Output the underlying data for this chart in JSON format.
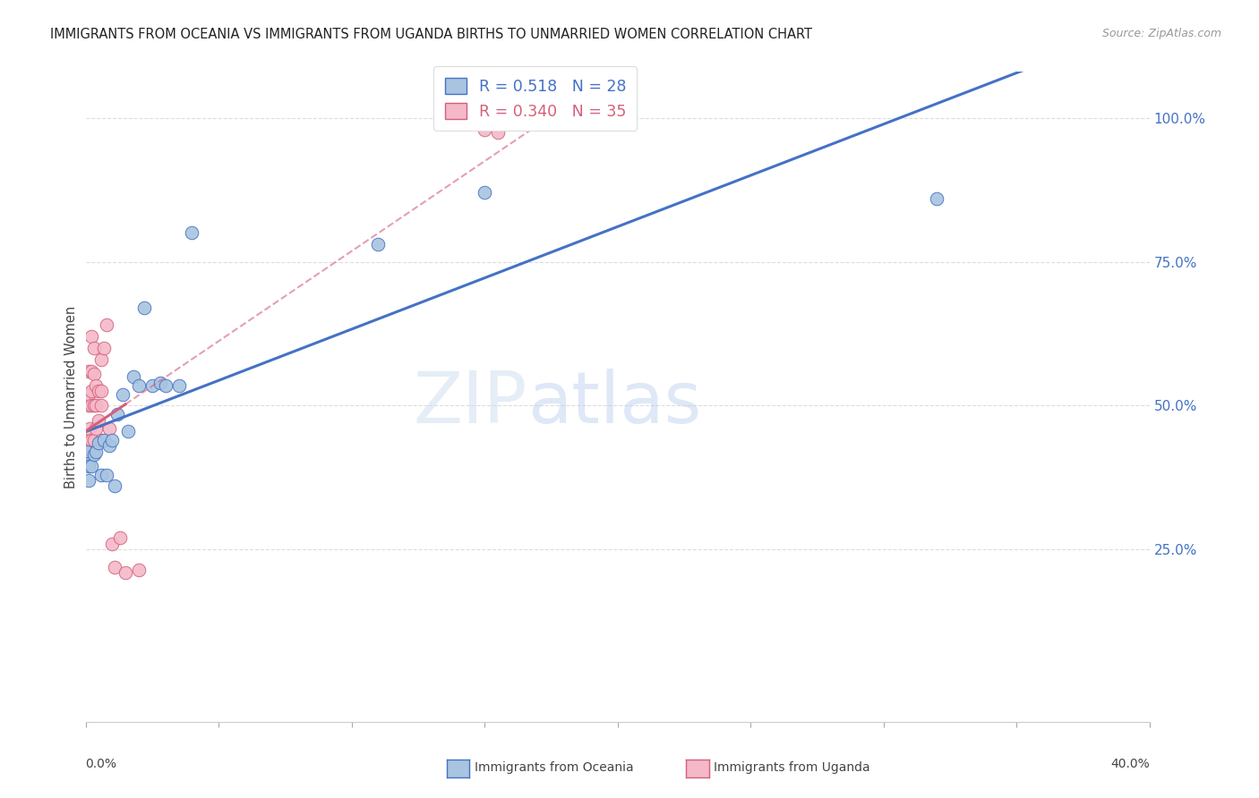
{
  "title": "IMMIGRANTS FROM OCEANIA VS IMMIGRANTS FROM UGANDA BIRTHS TO UNMARRIED WOMEN CORRELATION CHART",
  "source": "Source: ZipAtlas.com",
  "ylabel": "Births to Unmarried Women",
  "ylabel_right_ticks": [
    "100.0%",
    "75.0%",
    "50.0%",
    "25.0%"
  ],
  "ylabel_right_vals": [
    1.0,
    0.75,
    0.5,
    0.25
  ],
  "color_oceania": "#a8c4e0",
  "color_uganda": "#f4b8c8",
  "line_color_oceania": "#4472c4",
  "line_color_uganda": "#d4607a",
  "xlim": [
    0.0,
    0.4
  ],
  "ylim": [
    -0.05,
    1.08
  ],
  "oceania_x": [
    0.0005,
    0.001,
    0.001,
    0.001,
    0.002,
    0.003,
    0.004,
    0.005,
    0.006,
    0.007,
    0.008,
    0.009,
    0.01,
    0.011,
    0.012,
    0.014,
    0.016,
    0.018,
    0.02,
    0.022,
    0.025,
    0.028,
    0.03,
    0.035,
    0.04,
    0.11,
    0.32,
    0.15
  ],
  "oceania_y": [
    0.42,
    0.4,
    0.37,
    0.395,
    0.395,
    0.415,
    0.42,
    0.435,
    0.38,
    0.44,
    0.38,
    0.43,
    0.44,
    0.36,
    0.485,
    0.52,
    0.455,
    0.55,
    0.535,
    0.67,
    0.535,
    0.54,
    0.535,
    0.535,
    0.8,
    0.78,
    0.86,
    0.87
  ],
  "uganda_x": [
    0.0003,
    0.0005,
    0.001,
    0.001,
    0.001,
    0.001,
    0.0015,
    0.002,
    0.002,
    0.002,
    0.002,
    0.002,
    0.003,
    0.003,
    0.003,
    0.003,
    0.004,
    0.004,
    0.004,
    0.005,
    0.005,
    0.006,
    0.006,
    0.006,
    0.006,
    0.007,
    0.008,
    0.009,
    0.01,
    0.011,
    0.013,
    0.015,
    0.02,
    0.15,
    0.155
  ],
  "uganda_y": [
    0.415,
    0.42,
    0.44,
    0.5,
    0.52,
    0.56,
    0.46,
    0.44,
    0.5,
    0.525,
    0.56,
    0.62,
    0.44,
    0.5,
    0.555,
    0.6,
    0.46,
    0.5,
    0.535,
    0.475,
    0.525,
    0.44,
    0.5,
    0.525,
    0.58,
    0.6,
    0.64,
    0.46,
    0.26,
    0.22,
    0.27,
    0.21,
    0.215,
    0.98,
    0.975
  ],
  "watermark_zip": "ZIP",
  "watermark_atlas": "atlas",
  "bg_color": "#ffffff",
  "grid_color": "#dddddd",
  "tick_color": "#aaaaaa",
  "legend_r1_r": "0.518",
  "legend_r1_n": "28",
  "legend_r2_r": "0.340",
  "legend_r2_n": "35"
}
